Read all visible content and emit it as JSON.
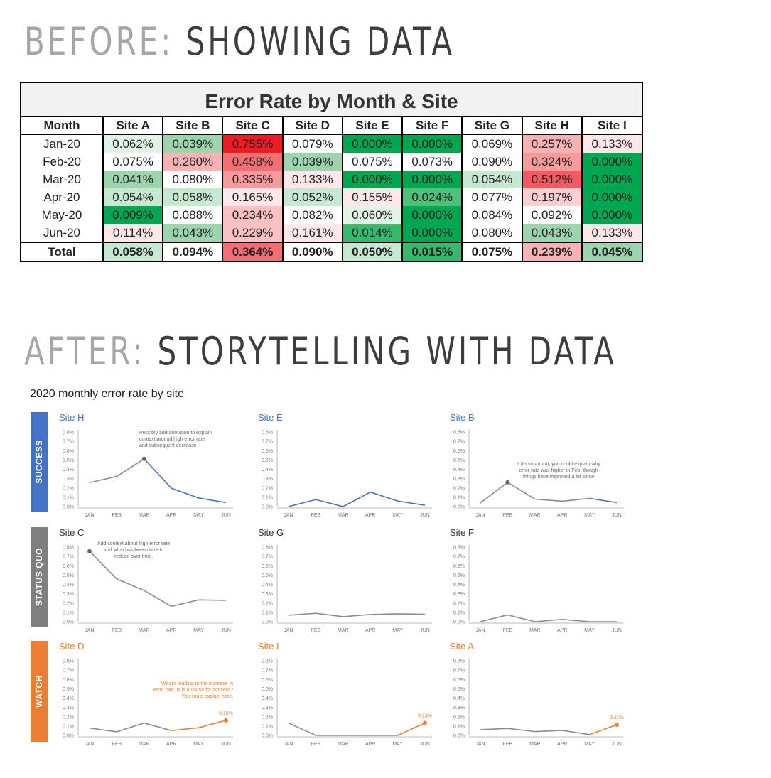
{
  "before": {
    "label": "BEFORE:",
    "title": "SHOWING DATA"
  },
  "after": {
    "label": "AFTER:",
    "title": "STORYTELLING WITH DATA"
  },
  "table": {
    "title": "Error Rate by Month & Site",
    "header": [
      "Month",
      "Site A",
      "Site B",
      "Site C",
      "Site D",
      "Site E",
      "Site F",
      "Site G",
      "Site H",
      "Site I"
    ],
    "rows": [
      {
        "label": "Jan-20",
        "cells": [
          "0.062%",
          "0.039%",
          "0.755%",
          "0.079%",
          "0.000%",
          "0.000%",
          "0.069%",
          "0.257%",
          "0.133%"
        ],
        "colors": [
          "#e2f2e7",
          "#9bd4ad",
          "#ee1c25",
          "#ffffff",
          "#00a650",
          "#00a650",
          "#ffffff",
          "#f6b2b4",
          "#fde7e8"
        ]
      },
      {
        "label": "Feb-20",
        "cells": [
          "0.075%",
          "0.260%",
          "0.458%",
          "0.039%",
          "0.075%",
          "0.073%",
          "0.090%",
          "0.324%",
          "0.000%"
        ],
        "colors": [
          "#ffffff",
          "#f6b2b4",
          "#f36e73",
          "#9bd4ad",
          "#ffffff",
          "#ffffff",
          "#ffffff",
          "#f59a9d",
          "#00a650"
        ]
      },
      {
        "label": "Mar-20",
        "cells": [
          "0.041%",
          "0.080%",
          "0.335%",
          "0.133%",
          "0.000%",
          "0.000%",
          "0.054%",
          "0.512%",
          "0.000%"
        ],
        "colors": [
          "#9bd4ad",
          "#ffffff",
          "#f59a9d",
          "#fde7e8",
          "#00a650",
          "#00a650",
          "#c6e7d0",
          "#f05a60",
          "#00a650"
        ]
      },
      {
        "label": "Apr-20",
        "cells": [
          "0.054%",
          "0.058%",
          "0.165%",
          "0.052%",
          "0.155%",
          "0.024%",
          "0.077%",
          "0.197%",
          "0.000%"
        ],
        "colors": [
          "#c6e7d0",
          "#c6e7d0",
          "#fde7e8",
          "#c6e7d0",
          "#fde7e8",
          "#4fc07c",
          "#ffffff",
          "#fbcfd1",
          "#00a650"
        ]
      },
      {
        "label": "May-20",
        "cells": [
          "0.009%",
          "0.088%",
          "0.234%",
          "0.082%",
          "0.060%",
          "0.000%",
          "0.084%",
          "0.092%",
          "0.000%"
        ],
        "colors": [
          "#00a650",
          "#ffffff",
          "#fbc0c2",
          "#ffffff",
          "#e2f2e7",
          "#00a650",
          "#ffffff",
          "#ffffff",
          "#00a650"
        ]
      },
      {
        "label": "Jun-20",
        "cells": [
          "0.114%",
          "0.043%",
          "0.229%",
          "0.161%",
          "0.014%",
          "0.000%",
          "0.080%",
          "0.043%",
          "0.133%"
        ],
        "colors": [
          "#fde7e8",
          "#9bd4ad",
          "#fbc0c2",
          "#fde7e8",
          "#38b86d",
          "#00a650",
          "#ffffff",
          "#9bd4ad",
          "#fde7e8"
        ]
      }
    ],
    "total": {
      "label": "Total",
      "cells": [
        "0.058%",
        "0.094%",
        "0.364%",
        "0.090%",
        "0.050%",
        "0.015%",
        "0.075%",
        "0.239%",
        "0.045%"
      ],
      "colors": [
        "#c6e7d0",
        "#ffffff",
        "#f36e73",
        "#ffffff",
        "#c6e7d0",
        "#38b86d",
        "#ffffff",
        "#f6b2b4",
        "#9bd4ad"
      ]
    }
  },
  "small_multiples_title": "2020 monthly error rate by site",
  "groups": [
    {
      "label": "SUCCESS",
      "color": "#4472c4"
    },
    {
      "label": "STATUS QUO",
      "color": "#7f7f7f"
    },
    {
      "label": "WATCH",
      "color": "#ed7d31"
    }
  ],
  "chart_data": {
    "type": "line",
    "title": "2020 monthly error rate by site",
    "x": [
      "JAN",
      "FEB",
      "MAR",
      "APR",
      "MAY",
      "JUN"
    ],
    "yticks": [
      "0.8%",
      "0.7%",
      "0.6%",
      "0.5%",
      "0.4%",
      "0.3%",
      "0.2%",
      "0.1%",
      "0.0%"
    ],
    "ylim": [
      0,
      0.8
    ],
    "series": [
      {
        "name": "Site H",
        "group": "SUCCESS",
        "values": [
          0.257,
          0.324,
          0.512,
          0.197,
          0.092,
          0.043
        ],
        "highlight": "decline",
        "annotation": [
          "Possibly add anotation to explain",
          "context around high error rate",
          "and subsequent decrease"
        ]
      },
      {
        "name": "Site E",
        "group": "SUCCESS",
        "values": [
          0.0,
          0.075,
          0.0,
          0.155,
          0.06,
          0.014
        ],
        "highlight": "all",
        "annotation": []
      },
      {
        "name": "Site B",
        "group": "SUCCESS",
        "values": [
          0.039,
          0.26,
          0.08,
          0.058,
          0.088,
          0.043
        ],
        "highlight": "last",
        "annotation": [
          "If it's important, you could explain why",
          "error rate was higher in Feb, though",
          "things have improved a lot since"
        ]
      },
      {
        "name": "Site C",
        "group": "STATUS QUO",
        "values": [
          0.755,
          0.458,
          0.335,
          0.165,
          0.234,
          0.229
        ],
        "highlight": "none",
        "annotation": [
          "Add context about high error rate",
          "and what has been done to",
          "reduce over time."
        ]
      },
      {
        "name": "Site G",
        "group": "STATUS QUO",
        "values": [
          0.069,
          0.09,
          0.054,
          0.077,
          0.084,
          0.08
        ],
        "highlight": "none",
        "annotation": []
      },
      {
        "name": "Site F",
        "group": "STATUS QUO",
        "values": [
          0.0,
          0.073,
          0.0,
          0.024,
          0.0,
          0.0
        ],
        "highlight": "none",
        "annotation": []
      },
      {
        "name": "Site D",
        "group": "WATCH",
        "values": [
          0.079,
          0.039,
          0.133,
          0.052,
          0.082,
          0.161
        ],
        "highlight": "rise",
        "annotation": [
          "What's leading to the increase in",
          "error rate, is is a cause for concern?",
          "You could explain here."
        ],
        "end_label": "0.16%"
      },
      {
        "name": "Site I",
        "group": "WATCH",
        "values": [
          0.133,
          0.0,
          0.0,
          0.0,
          0.0,
          0.133
        ],
        "highlight": "rise",
        "annotation": [],
        "end_label": "0.13%"
      },
      {
        "name": "Site A",
        "group": "WATCH",
        "values": [
          0.062,
          0.075,
          0.041,
          0.054,
          0.009,
          0.114
        ],
        "highlight": "rise",
        "annotation": [],
        "end_label": "0.11%"
      }
    ]
  }
}
